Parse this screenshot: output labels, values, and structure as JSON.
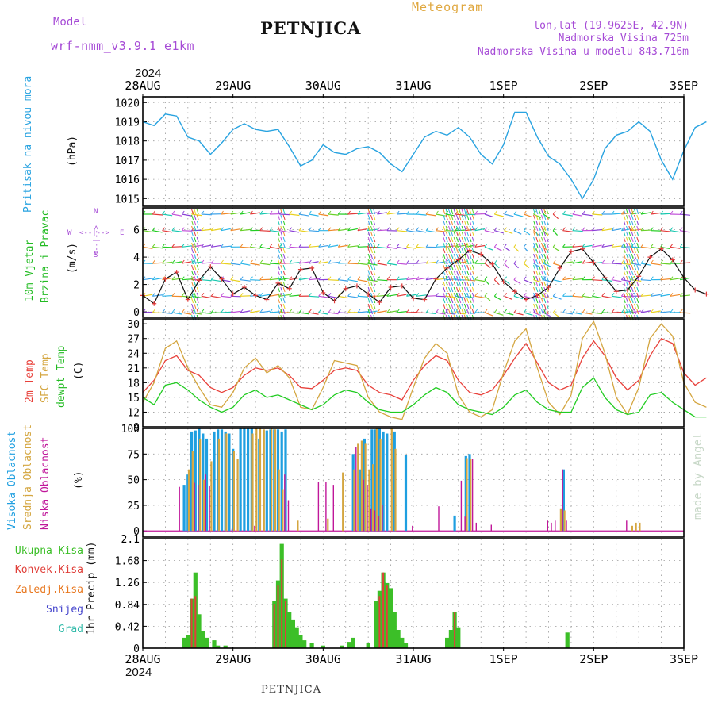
{
  "header": {
    "model_label": "Model",
    "model_name": "wrf-nmm_v3.9.1 e1km",
    "title": "PETNJICA",
    "product": "Meteogram",
    "coords": "lon,lat (19.9625E, 42.9N)",
    "elevation": "Nadmorska Visina 725m",
    "model_elevation": "Nadmorska Visina u modelu 843.716m",
    "year_top": "2024",
    "year_bottom": "2024",
    "footer": "PETNJICA",
    "credit": "made by Angel"
  },
  "colors": {
    "pressure": "#29a3e0",
    "wind_label": "#22bb22",
    "temp2m": "#e8403a",
    "sfc": "#d4a640",
    "dewpt": "#22cc22",
    "high_cloud": "#1f9fe0",
    "mid_cloud": "#d4a640",
    "low_cloud": "#c0179a",
    "total_precip": "#3cbf28",
    "conv_precip": "#e0403a",
    "frz_precip": "#e87820",
    "snow": "#4444cc",
    "hail": "#33bbaa",
    "purple": "#a64bd6",
    "orange": "#e0a840"
  },
  "x_axis": {
    "date_labels": [
      "28AUG",
      "29AUG",
      "30AUG",
      "31AUG",
      "1SEP",
      "2SEP",
      "3SEP"
    ]
  },
  "panels": {
    "pressure": {
      "ylabel": "Pritisak na nivou mora",
      "unit": "(hPa)",
      "ticks": [
        "1020",
        "1019",
        "1018",
        "1017",
        "1016",
        "1015"
      ]
    },
    "wind": {
      "ylabel1": "10m Vjetar",
      "ylabel2": "Brzina i Pravac",
      "unit": "(m/s)",
      "ticks": [
        "6",
        "4",
        "2",
        "0"
      ],
      "compass_n": "N",
      "compass_w": "W",
      "compass_e": "E",
      "compass_s": "S",
      "compass_arrows": "<--|-->"
    },
    "temperature": {
      "label_2m": "2m Temp",
      "label_sfc": "SFC Temp",
      "label_dew": "dewpt Temp",
      "unit": "(C)",
      "ticks": [
        "30",
        "27",
        "24",
        "21",
        "18",
        "15",
        "12",
        "9"
      ]
    },
    "cloud": {
      "label_high": "Visoka Oblacnost",
      "label_mid": "Srednja Oblacnost",
      "label_low": "Niska Oblacnost",
      "unit": "(%)",
      "ticks": [
        "100",
        "75",
        "50",
        "25",
        "0"
      ]
    },
    "precip": {
      "legend": [
        "Ukupna Kisa",
        "Konvek.Kisa",
        "Zaledj.Kisa",
        "Snijeg",
        "Grad"
      ],
      "ylabel": "1hr Precip (mm)",
      "ticks": [
        "2.1",
        "1.68",
        "1.26",
        "0.84",
        "0.42",
        "0"
      ]
    }
  },
  "chart_data": [
    {
      "type": "line",
      "panel": "pressure",
      "x_start": "2024-08-28 00Z",
      "step_hours": 3,
      "ylim": [
        1014.6,
        1020.3
      ],
      "series": [
        {
          "values": [
            1019.0,
            1018.8,
            1019.4,
            1019.3,
            1018.2,
            1018.0,
            1017.3,
            1017.9,
            1018.6,
            1018.9,
            1018.6,
            1018.5,
            1018.6,
            1017.7,
            1016.7,
            1017.0,
            1017.8,
            1017.4,
            1017.3,
            1017.6,
            1017.7,
            1017.4,
            1016.8,
            1016.4,
            1017.3,
            1018.2,
            1018.5,
            1018.3,
            1018.7,
            1018.2,
            1017.3,
            1016.8,
            1017.8,
            1019.5,
            1019.5,
            1018.2,
            1017.2,
            1016.8,
            1016.0,
            1015.0,
            1016.0,
            1017.6,
            1018.3,
            1018.5,
            1019.0,
            1018.5,
            1017.0,
            1016.0,
            1017.5,
            1018.7,
            1019.0
          ]
        }
      ],
      "grid": true
    },
    {
      "type": "line",
      "panel": "wind_speed",
      "x_start": "2024-08-28 00Z",
      "step_hours": 3,
      "ylim": [
        -0.4,
        7.6
      ],
      "series": [
        {
          "values": [
            1.2,
            0.6,
            2.4,
            2.9,
            0.9,
            2.3,
            3.3,
            2.4,
            1.3,
            1.8,
            1.2,
            0.9,
            2.1,
            1.7,
            3.1,
            3.2,
            1.4,
            0.8,
            1.7,
            1.9,
            1.3,
            0.7,
            1.8,
            1.9,
            1.0,
            0.9,
            2.4,
            3.2,
            3.8,
            4.5,
            4.2,
            3.5,
            2.2,
            1.5,
            0.9,
            1.2,
            1.8,
            3.2,
            4.4,
            4.6,
            3.6,
            2.5,
            1.5,
            1.6,
            2.6,
            4.0,
            4.6,
            3.8,
            2.5,
            1.6,
            1.3
          ]
        }
      ],
      "grid": true
    },
    {
      "type": "line",
      "panel": "temperature",
      "x_start": "2024-08-28 00Z",
      "step_hours": 3,
      "ylim": [
        9,
        31
      ],
      "series": [
        {
          "name": "2m Temp",
          "values": [
            16.0,
            18.5,
            22.5,
            23.5,
            20.5,
            19.5,
            17.0,
            16.0,
            17.0,
            19.5,
            21.0,
            20.5,
            21.0,
            19.5,
            17.0,
            16.8,
            18.5,
            20.5,
            21.0,
            20.5,
            17.5,
            16.0,
            15.5,
            14.5,
            18.5,
            21.5,
            23.5,
            22.5,
            18.5,
            16.0,
            15.5,
            16.5,
            19.5,
            23.0,
            26.0,
            22.0,
            18.0,
            16.5,
            17.5,
            23.0,
            26.5,
            23.5,
            19.0,
            16.5,
            18.5,
            23.5,
            27.0,
            26.0,
            20.0,
            17.5,
            19.0
          ]
        },
        {
          "name": "SFC Temp",
          "values": [
            14.0,
            18.0,
            25.0,
            26.5,
            21.0,
            17.0,
            13.5,
            13.0,
            16.0,
            21.0,
            23.0,
            20.0,
            21.5,
            19.0,
            13.0,
            12.5,
            17.0,
            22.5,
            22.0,
            21.5,
            15.0,
            12.0,
            11.0,
            10.5,
            17.0,
            23.0,
            26.0,
            24.0,
            15.5,
            12.0,
            11.0,
            12.5,
            20.0,
            26.5,
            29.0,
            21.0,
            14.0,
            11.5,
            15.5,
            27.0,
            30.5,
            24.0,
            15.0,
            11.5,
            17.0,
            27.0,
            30.0,
            27.5,
            18.0,
            14.0,
            13.0
          ]
        },
        {
          "name": "dewpt Temp",
          "values": [
            15.0,
            13.5,
            17.5,
            18.0,
            16.5,
            14.5,
            13.0,
            12.0,
            13.0,
            15.5,
            16.5,
            15.0,
            15.5,
            14.5,
            13.5,
            12.5,
            13.5,
            15.5,
            16.5,
            16.0,
            14.0,
            12.5,
            12.0,
            12.0,
            13.5,
            15.5,
            17.0,
            16.0,
            13.5,
            12.5,
            12.0,
            11.5,
            13.0,
            15.5,
            16.5,
            14.0,
            12.5,
            12.0,
            12.0,
            17.0,
            19.0,
            15.0,
            12.5,
            11.5,
            12.0,
            15.5,
            16.0,
            14.0,
            12.5,
            11.0,
            11.0
          ]
        }
      ],
      "grid": true
    },
    {
      "type": "bar",
      "panel": "cloud",
      "x_start": "2024-08-28 00Z",
      "step_hours": 1,
      "ylim": [
        0,
        100
      ],
      "series": [
        {
          "name": "Visoka Oblacnost",
          "values": [
            [
              11,
              45
            ],
            [
              12,
              55
            ],
            [
              13,
              97
            ],
            [
              14,
              98
            ],
            [
              15,
              100
            ],
            [
              16,
              95
            ],
            [
              17,
              90
            ],
            [
              19,
              97
            ],
            [
              20,
              99
            ],
            [
              21,
              99
            ],
            [
              22,
              97
            ],
            [
              23,
              95
            ],
            [
              24,
              80
            ],
            [
              26,
              100
            ],
            [
              27,
              100
            ],
            [
              28,
              100
            ],
            [
              29,
              100
            ],
            [
              31,
              90
            ],
            [
              33,
              98
            ],
            [
              34,
              99
            ],
            [
              35,
              99
            ],
            [
              36,
              99
            ],
            [
              37,
              97
            ],
            [
              38,
              99
            ],
            [
              56,
              75
            ],
            [
              58,
              60
            ],
            [
              59,
              90
            ],
            [
              61,
              99
            ],
            [
              62,
              99
            ],
            [
              63,
              100
            ],
            [
              64,
              97
            ],
            [
              65,
              95
            ],
            [
              67,
              97
            ],
            [
              70,
              74
            ],
            [
              83,
              15
            ],
            [
              86,
              73
            ],
            [
              87,
              75
            ],
            [
              112,
              60
            ]
          ]
        },
        {
          "name": "Srednja Oblacnost",
          "values": [
            [
              12,
              60
            ],
            [
              13,
              78
            ],
            [
              15,
              90
            ],
            [
              16,
              50
            ],
            [
              18,
              68
            ],
            [
              20,
              90
            ],
            [
              22,
              95
            ],
            [
              24,
              78
            ],
            [
              25,
              70
            ],
            [
              29,
              95
            ],
            [
              30,
              100
            ],
            [
              31,
              100
            ],
            [
              32,
              99
            ],
            [
              34,
              100
            ],
            [
              35,
              99
            ],
            [
              36,
              60
            ],
            [
              37,
              40
            ],
            [
              41,
              10
            ],
            [
              49,
              12
            ],
            [
              53,
              57
            ],
            [
              56,
              60
            ],
            [
              57,
              85
            ],
            [
              58,
              88
            ],
            [
              59,
              85
            ],
            [
              60,
              60
            ],
            [
              61,
              65
            ],
            [
              62,
              100
            ],
            [
              63,
              90
            ],
            [
              66,
              100
            ],
            [
              67,
              80
            ],
            [
              86,
              71
            ],
            [
              87,
              70
            ],
            [
              111,
              22
            ],
            [
              112,
              20
            ],
            [
              130,
              5
            ],
            [
              131,
              8
            ],
            [
              132,
              8
            ]
          ]
        },
        {
          "name": "Niska Oblacnost",
          "values": [
            [
              10,
              43
            ],
            [
              14,
              47
            ],
            [
              15,
              45
            ],
            [
              17,
              55
            ],
            [
              18,
              44
            ],
            [
              24,
              2
            ],
            [
              30,
              5
            ],
            [
              38,
              55
            ],
            [
              39,
              30
            ],
            [
              47,
              48
            ],
            [
              49,
              48
            ],
            [
              51,
              45
            ],
            [
              57,
              82
            ],
            [
              59,
              50
            ],
            [
              60,
              45
            ],
            [
              61,
              22
            ],
            [
              62,
              20
            ],
            [
              63,
              15
            ],
            [
              64,
              25
            ],
            [
              72,
              5
            ],
            [
              79,
              24
            ],
            [
              85,
              49
            ],
            [
              86,
              14
            ],
            [
              88,
              70
            ],
            [
              89,
              8
            ],
            [
              93,
              6
            ],
            [
              108,
              10
            ],
            [
              109,
              8
            ],
            [
              110,
              10
            ],
            [
              112,
              60
            ],
            [
              113,
              10
            ],
            [
              129,
              10
            ]
          ]
        }
      ],
      "grid": true
    },
    {
      "type": "bar",
      "panel": "precip",
      "x_start": "2024-08-28 00Z",
      "step_hours": 1,
      "ylim": [
        0,
        2.1
      ],
      "series": [
        {
          "name": "Ukupna Kisa",
          "values": [
            [
              11,
              0.2
            ],
            [
              12,
              0.25
            ],
            [
              13,
              0.95
            ],
            [
              14,
              1.45
            ],
            [
              15,
              0.65
            ],
            [
              16,
              0.32
            ],
            [
              17,
              0.2
            ],
            [
              19,
              0.15
            ],
            [
              20,
              0.05
            ],
            [
              22,
              0.05
            ],
            [
              35,
              0.9
            ],
            [
              36,
              1.3
            ],
            [
              37,
              2.0
            ],
            [
              38,
              0.95
            ],
            [
              39,
              0.7
            ],
            [
              40,
              0.55
            ],
            [
              41,
              0.4
            ],
            [
              42,
              0.25
            ],
            [
              43,
              0.15
            ],
            [
              45,
              0.1
            ],
            [
              48,
              0.05
            ],
            [
              53,
              0.05
            ],
            [
              55,
              0.12
            ],
            [
              56,
              0.2
            ],
            [
              60,
              0.1
            ],
            [
              62,
              0.9
            ],
            [
              63,
              1.1
            ],
            [
              64,
              1.45
            ],
            [
              65,
              1.25
            ],
            [
              66,
              1.15
            ],
            [
              67,
              0.7
            ],
            [
              68,
              0.35
            ],
            [
              69,
              0.2
            ],
            [
              70,
              0.1
            ],
            [
              81,
              0.2
            ],
            [
              82,
              0.35
            ],
            [
              83,
              0.7
            ],
            [
              84,
              0.4
            ],
            [
              113,
              0.3
            ]
          ]
        },
        {
          "name": "Konvek.Kisa",
          "values": [
            [
              13,
              0.95
            ],
            [
              14,
              1.0
            ],
            [
              35,
              0.85
            ],
            [
              36,
              1.2
            ],
            [
              37,
              1.7
            ],
            [
              38,
              0.9
            ],
            [
              63,
              1.0
            ],
            [
              64,
              1.45
            ],
            [
              65,
              1.2
            ],
            [
              83,
              0.7
            ]
          ]
        }
      ],
      "grid": true
    }
  ]
}
